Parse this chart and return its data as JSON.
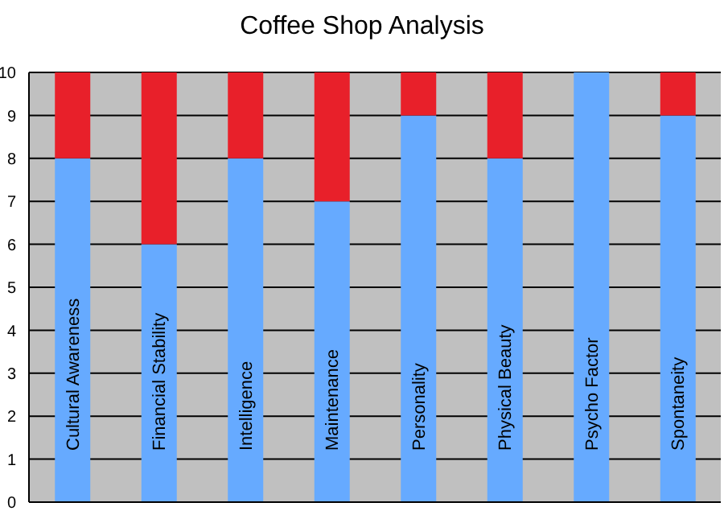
{
  "chart_data": {
    "type": "bar",
    "title": "Coffee Shop Analysis",
    "categories": [
      "Cultural Awareness",
      "Financial Stability",
      "Intelligence",
      "Maintenance",
      "Personality",
      "Physical Beauty",
      "Psycho Factor",
      "Spontaneity"
    ],
    "stacked": true,
    "ylim": [
      0,
      10
    ],
    "yticks": [
      0,
      1,
      2,
      3,
      4,
      5,
      6,
      7,
      8,
      9,
      10
    ],
    "grid": "y",
    "series": [
      {
        "color": "#66aaff",
        "values": [
          8,
          6,
          8,
          7,
          9,
          8,
          10,
          9
        ]
      },
      {
        "color": "#e8202a",
        "values": [
          2,
          4,
          2,
          3,
          1,
          2,
          0,
          1
        ]
      }
    ]
  }
}
